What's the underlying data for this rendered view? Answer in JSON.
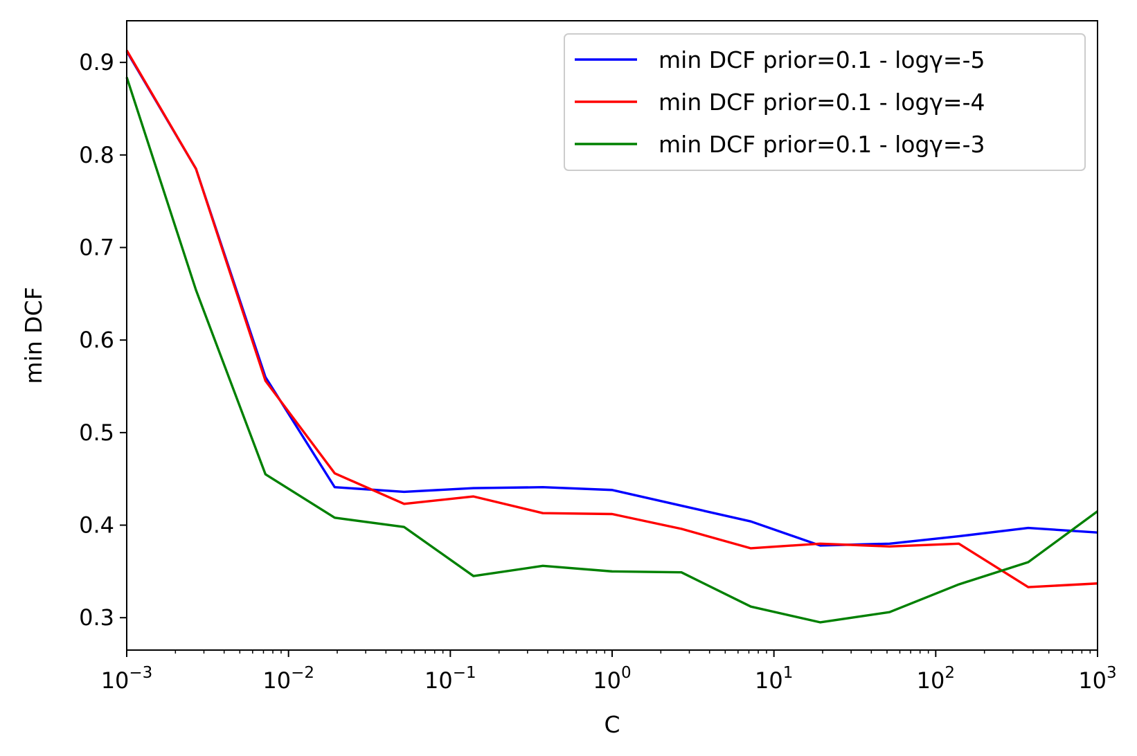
{
  "chart_data": {
    "type": "line",
    "xlabel": "C",
    "ylabel": "min DCF",
    "xscale": "log",
    "xlim": [
      0.001,
      1000
    ],
    "ylim": [
      0.265,
      0.945
    ],
    "x_tick_labels": [
      {
        "base": "10",
        "exp": "−3",
        "value": 0.001
      },
      {
        "base": "10",
        "exp": "−2",
        "value": 0.01
      },
      {
        "base": "10",
        "exp": "−1",
        "value": 0.1
      },
      {
        "base": "10",
        "exp": "0",
        "value": 1
      },
      {
        "base": "10",
        "exp": "1",
        "value": 10
      },
      {
        "base": "10",
        "exp": "2",
        "value": 100
      },
      {
        "base": "10",
        "exp": "3",
        "value": 1000
      }
    ],
    "y_ticks": [
      "0.3",
      "0.4",
      "0.5",
      "0.6",
      "0.7",
      "0.8",
      "0.9"
    ],
    "grid": false,
    "legend_position": "top-right",
    "x": [
      0.001,
      0.00268,
      0.0072,
      0.0193,
      0.0518,
      0.139,
      0.373,
      1.0,
      2.68,
      7.2,
      19.3,
      51.8,
      139,
      373,
      1000
    ],
    "series": [
      {
        "name": "min DCF prior=0.1 - logγ=-5",
        "color": "#0000ff",
        "values": [
          0.912,
          0.785,
          0.56,
          0.441,
          0.436,
          0.44,
          0.441,
          0.438,
          0.421,
          0.404,
          0.378,
          0.38,
          0.388,
          0.397,
          0.392
        ]
      },
      {
        "name": "min DCF prior=0.1 - logγ=-4",
        "color": "#ff0000",
        "values": [
          0.913,
          0.785,
          0.556,
          0.456,
          0.423,
          0.431,
          0.413,
          0.412,
          0.396,
          0.375,
          0.38,
          0.377,
          0.38,
          0.333,
          0.337
        ]
      },
      {
        "name": "min DCF prior=0.1 - logγ=-3",
        "color": "#008000",
        "values": [
          0.884,
          0.654,
          0.455,
          0.408,
          0.398,
          0.345,
          0.356,
          0.35,
          0.349,
          0.312,
          0.295,
          0.306,
          0.336,
          0.36,
          0.415
        ]
      }
    ]
  }
}
